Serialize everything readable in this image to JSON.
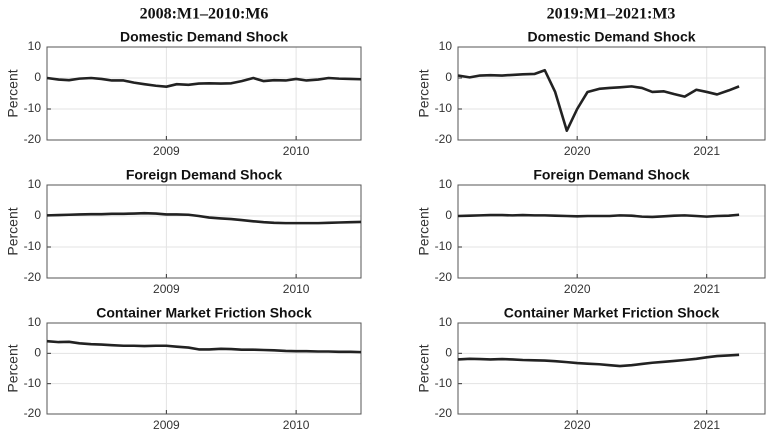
{
  "column_titles": [
    "2008:M1–2010:M6",
    "2019:M1–2021:M3"
  ],
  "chart_data": [
    {
      "type": "line",
      "title": "Domestic Demand Shock",
      "ylabel": "Percent",
      "color": "#222222",
      "grid": true,
      "x": [
        2008.08,
        2008.17,
        2008.25,
        2008.33,
        2008.42,
        2008.5,
        2008.58,
        2008.67,
        2008.75,
        2008.83,
        2008.92,
        2009,
        2009.08,
        2009.17,
        2009.25,
        2009.33,
        2009.42,
        2009.5,
        2009.58,
        2009.67,
        2009.75,
        2009.83,
        2009.92,
        2010,
        2010.08,
        2010.17,
        2010.25,
        2010.33,
        2010.42,
        2010.5
      ],
      "values": [
        0,
        -0.5,
        -0.7,
        -0.2,
        0,
        -0.3,
        -0.8,
        -0.8,
        -1.5,
        -2,
        -2.5,
        -2.8,
        -2,
        -2.2,
        -1.8,
        -1.7,
        -1.8,
        -1.7,
        -1,
        0,
        -1,
        -0.7,
        -0.8,
        -0.3,
        -0.8,
        -0.5,
        0,
        -0.2,
        -0.3,
        -0.4
      ],
      "xlim": [
        2008.08,
        2010.5
      ],
      "xticks": [
        2009,
        2010
      ],
      "ylim": [
        -20,
        10
      ],
      "yticks": [
        -20,
        -10,
        0,
        10
      ]
    },
    {
      "type": "line",
      "title": "Domestic Demand Shock",
      "ylabel": "Percent",
      "color": "#222222",
      "grid": true,
      "x": [
        2019.08,
        2019.17,
        2019.25,
        2019.33,
        2019.42,
        2019.5,
        2019.58,
        2019.67,
        2019.75,
        2019.83,
        2019.92,
        2020,
        2020.08,
        2020.17,
        2020.25,
        2020.33,
        2020.42,
        2020.5,
        2020.58,
        2020.67,
        2020.75,
        2020.83,
        2020.92,
        2021,
        2021.08,
        2021.17,
        2021.25
      ],
      "values": [
        0.8,
        0.2,
        0.8,
        0.9,
        0.8,
        1,
        1.2,
        1.3,
        2.5,
        -4.5,
        -17,
        -10,
        -4.5,
        -3.5,
        -3.2,
        -3,
        -2.7,
        -3.2,
        -4.5,
        -4.3,
        -5.2,
        -6,
        -3.8,
        -4.5,
        -5.3,
        -4,
        -2.7
      ],
      "xlim": [
        2019.08,
        2021.45
      ],
      "xticks": [
        2020,
        2021
      ],
      "ylim": [
        -20,
        10
      ],
      "yticks": [
        -20,
        -10,
        0,
        10
      ]
    },
    {
      "type": "line",
      "title": "Foreign Demand Shock",
      "ylabel": "Percent",
      "color": "#222222",
      "grid": true,
      "x": [
        2008.08,
        2008.17,
        2008.25,
        2008.33,
        2008.42,
        2008.5,
        2008.58,
        2008.67,
        2008.75,
        2008.83,
        2008.92,
        2009,
        2009.08,
        2009.17,
        2009.25,
        2009.33,
        2009.42,
        2009.5,
        2009.58,
        2009.67,
        2009.75,
        2009.83,
        2009.92,
        2010,
        2010.08,
        2010.17,
        2010.25,
        2010.33,
        2010.42,
        2010.5
      ],
      "values": [
        0.2,
        0.3,
        0.4,
        0.5,
        0.6,
        0.6,
        0.7,
        0.7,
        0.8,
        0.9,
        0.8,
        0.5,
        0.5,
        0.4,
        0,
        -0.5,
        -0.8,
        -1,
        -1.3,
        -1.7,
        -2,
        -2.2,
        -2.3,
        -2.3,
        -2.3,
        -2.3,
        -2.2,
        -2.1,
        -2,
        -1.9
      ],
      "xlim": [
        2008.08,
        2010.5
      ],
      "xticks": [
        2009,
        2010
      ],
      "ylim": [
        -20,
        10
      ],
      "yticks": [
        -20,
        -10,
        0,
        10
      ]
    },
    {
      "type": "line",
      "title": "Foreign Demand Shock",
      "ylabel": "Percent",
      "color": "#222222",
      "grid": true,
      "x": [
        2019.08,
        2019.17,
        2019.25,
        2019.33,
        2019.42,
        2019.5,
        2019.58,
        2019.67,
        2019.75,
        2019.83,
        2019.92,
        2020,
        2020.08,
        2020.17,
        2020.25,
        2020.33,
        2020.42,
        2020.5,
        2020.58,
        2020.67,
        2020.75,
        2020.83,
        2020.92,
        2021,
        2021.08,
        2021.17,
        2021.25
      ],
      "values": [
        0,
        0.1,
        0.2,
        0.3,
        0.3,
        0.2,
        0.3,
        0.2,
        0.2,
        0.1,
        0,
        -0.1,
        0,
        0,
        0,
        0.2,
        0.1,
        -0.2,
        -0.3,
        -0.1,
        0.1,
        0.2,
        0,
        -0.2,
        0,
        0.1,
        0.4
      ],
      "xlim": [
        2019.08,
        2021.45
      ],
      "xticks": [
        2020,
        2021
      ],
      "ylim": [
        -20,
        10
      ],
      "yticks": [
        -20,
        -10,
        0,
        10
      ]
    },
    {
      "type": "line",
      "title": "Container Market Friction Shock",
      "ylabel": "Percent",
      "color": "#222222",
      "grid": true,
      "x": [
        2008.08,
        2008.17,
        2008.25,
        2008.33,
        2008.42,
        2008.5,
        2008.58,
        2008.67,
        2008.75,
        2008.83,
        2008.92,
        2009,
        2009.08,
        2009.17,
        2009.25,
        2009.33,
        2009.42,
        2009.5,
        2009.58,
        2009.67,
        2009.75,
        2009.83,
        2009.92,
        2010,
        2010.08,
        2010.17,
        2010.25,
        2010.33,
        2010.42,
        2010.5
      ],
      "values": [
        4,
        3.7,
        3.8,
        3.3,
        3,
        2.9,
        2.7,
        2.5,
        2.5,
        2.4,
        2.5,
        2.5,
        2.2,
        1.9,
        1.3,
        1.3,
        1.5,
        1.4,
        1.2,
        1.2,
        1.1,
        1,
        0.8,
        0.7,
        0.7,
        0.6,
        0.6,
        0.5,
        0.5,
        0.4
      ],
      "xlim": [
        2008.08,
        2010.5
      ],
      "xticks": [
        2009,
        2010
      ],
      "ylim": [
        -20,
        10
      ],
      "yticks": [
        -20,
        -10,
        0,
        10
      ]
    },
    {
      "type": "line",
      "title": "Container Market Friction Shock",
      "ylabel": "Percent",
      "color": "#222222",
      "grid": true,
      "x": [
        2019.08,
        2019.17,
        2019.25,
        2019.33,
        2019.42,
        2019.5,
        2019.58,
        2019.67,
        2019.75,
        2019.83,
        2019.92,
        2020,
        2020.08,
        2020.17,
        2020.25,
        2020.33,
        2020.42,
        2020.5,
        2020.58,
        2020.67,
        2020.75,
        2020.83,
        2020.92,
        2021,
        2021.08,
        2021.17,
        2021.25
      ],
      "values": [
        -2,
        -1.8,
        -1.9,
        -2,
        -1.9,
        -2,
        -2.2,
        -2.3,
        -2.4,
        -2.6,
        -2.9,
        -3.2,
        -3.4,
        -3.6,
        -3.9,
        -4.2,
        -3.9,
        -3.5,
        -3.1,
        -2.8,
        -2.5,
        -2.2,
        -1.8,
        -1.3,
        -0.9,
        -0.7,
        -0.5
      ],
      "xlim": [
        2019.08,
        2021.45
      ],
      "xticks": [
        2020,
        2021
      ],
      "ylim": [
        -20,
        10
      ],
      "yticks": [
        -20,
        -10,
        0,
        10
      ]
    }
  ]
}
